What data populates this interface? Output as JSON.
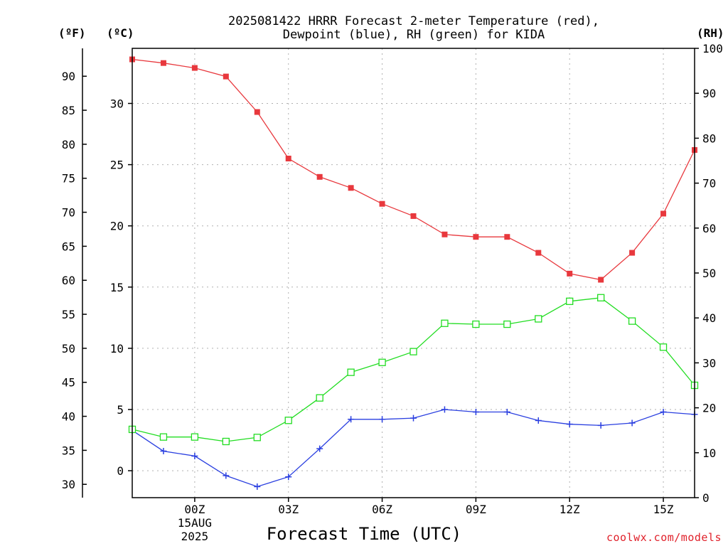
{
  "chart_data": {
    "type": "line",
    "title_line1": "2025081422 HRRR Forecast 2-meter Temperature (red),",
    "title_line2": "Dewpoint (blue), RH (green) for KIDA",
    "xlabel": "Forecast Time (UTC)",
    "credit": "coolwx.com/models",
    "units": {
      "fahrenheit": "(ºF)",
      "celsius": "(ºC)",
      "rh": "(RH)"
    },
    "x_hours": [
      -2,
      -1,
      0,
      1,
      2,
      3,
      4,
      5,
      6,
      7,
      8,
      9,
      10,
      11,
      12,
      13,
      14,
      15,
      16
    ],
    "x_ticks": [
      {
        "hour": 0,
        "label": "00Z",
        "sub1": "15AUG",
        "sub2": "2025"
      },
      {
        "hour": 3,
        "label": "03Z"
      },
      {
        "hour": 6,
        "label": "06Z"
      },
      {
        "hour": 9,
        "label": "09Z"
      },
      {
        "hour": 12,
        "label": "12Z"
      },
      {
        "hour": 15,
        "label": "15Z"
      }
    ],
    "celsius_axis": {
      "min": -2.2,
      "max": 34.5,
      "ticks": [
        0,
        5,
        10,
        15,
        20,
        25,
        30
      ]
    },
    "fahrenheit_ticks": [
      30,
      35,
      40,
      45,
      50,
      55,
      60,
      65,
      70,
      75,
      80,
      85,
      90
    ],
    "rh_axis": {
      "min": 0,
      "max": 100,
      "ticks": [
        0,
        10,
        20,
        30,
        40,
        50,
        60,
        70,
        80,
        90,
        100
      ]
    },
    "series": [
      {
        "name": "Temperature",
        "axis": "celsius",
        "color": "#e8383d",
        "marker": "filled-square",
        "values": [
          33.6,
          33.3,
          32.9,
          32.2,
          29.3,
          25.5,
          24.0,
          23.1,
          21.8,
          20.8,
          19.3,
          19.1,
          19.1,
          17.8,
          16.1,
          15.6,
          17.8,
          21.0,
          26.2
        ]
      },
      {
        "name": "Dewpoint",
        "axis": "celsius",
        "color": "#2a3fe0",
        "marker": "plus",
        "values": [
          3.3,
          1.6,
          1.2,
          -0.4,
          -1.3,
          -0.5,
          1.8,
          4.2,
          4.2,
          4.3,
          5.0,
          4.8,
          4.8,
          4.1,
          3.8,
          3.7,
          3.9,
          4.8,
          4.6
        ]
      },
      {
        "name": "RH",
        "axis": "rh",
        "color": "#22dd22",
        "marker": "open-square",
        "values": [
          15.2,
          13.5,
          13.5,
          12.5,
          13.4,
          17.2,
          22.2,
          27.9,
          30.1,
          32.5,
          38.8,
          38.6,
          38.6,
          39.8,
          43.7,
          44.5,
          39.3,
          33.5,
          25.0
        ]
      }
    ]
  }
}
